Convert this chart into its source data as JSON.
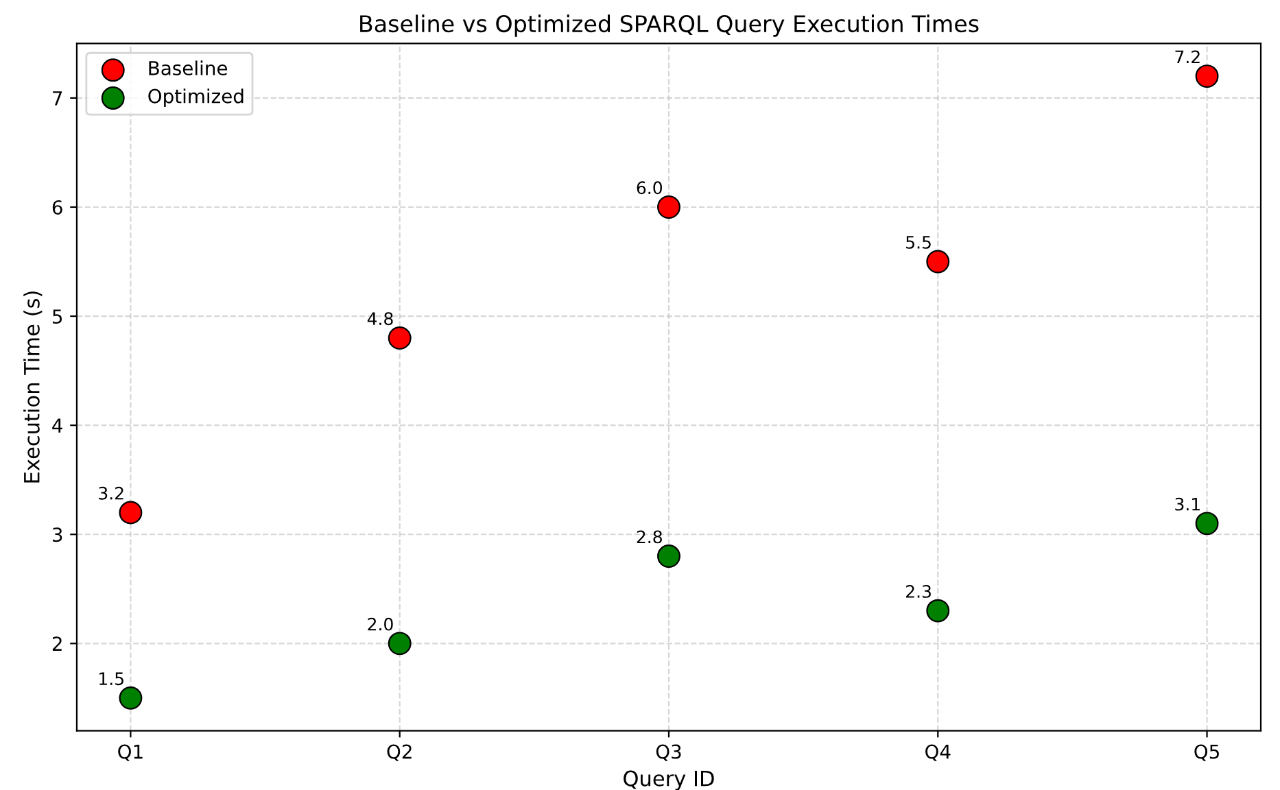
{
  "chart_data": {
    "type": "scatter",
    "title": "Baseline vs Optimized SPARQL Query Execution Times",
    "xlabel": "Query ID",
    "ylabel": "Execution Time (s)",
    "categories": [
      "Q1",
      "Q2",
      "Q3",
      "Q4",
      "Q5"
    ],
    "series": [
      {
        "name": "Baseline",
        "color": "#ff0000",
        "values": [
          3.2,
          4.8,
          6.0,
          5.5,
          7.2
        ],
        "value_labels": [
          "3.2",
          "4.8",
          "6.0",
          "5.5",
          "7.2"
        ]
      },
      {
        "name": "Optimized",
        "color": "#008000",
        "values": [
          1.5,
          2.0,
          2.8,
          2.3,
          3.1
        ],
        "value_labels": [
          "1.5",
          "2.0",
          "2.8",
          "2.3",
          "3.1"
        ]
      }
    ],
    "ylim": [
      1.2,
      7.5
    ],
    "yticks": [
      2,
      3,
      4,
      5,
      6,
      7
    ],
    "grid": true,
    "legend": "top left",
    "marker": "circle"
  }
}
